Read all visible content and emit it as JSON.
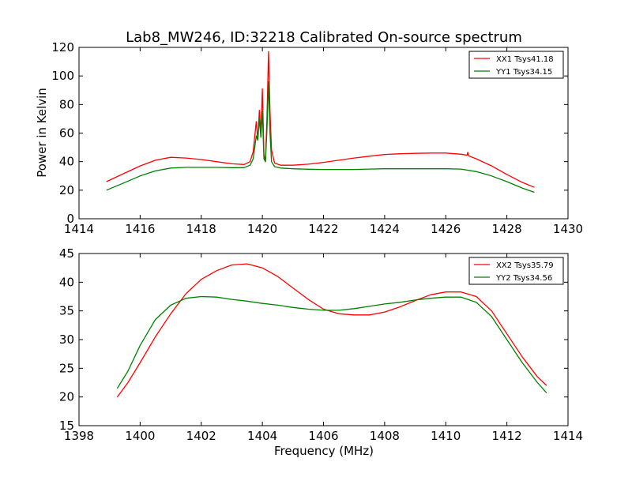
{
  "chart_data": [
    {
      "type": "line",
      "title": "Lab8_MW246, ID:32218 Calibrated On-source spectrum",
      "xlabel": "",
      "ylabel": "Power in Kelvin",
      "xlim": [
        1414,
        1430
      ],
      "ylim": [
        0,
        120
      ],
      "xticks": [
        "1414",
        "1416",
        "1418",
        "1420",
        "1422",
        "1424",
        "1426",
        "1428",
        "1430"
      ],
      "yticks": [
        "0",
        "20",
        "40",
        "60",
        "80",
        "100",
        "120"
      ],
      "grid": false,
      "legend_position": "top-right",
      "series": [
        {
          "name": "XX1 Tsys41.18",
          "color": "#ff0000",
          "x": [
            1414.9,
            1415.4,
            1416.0,
            1416.5,
            1417.0,
            1417.5,
            1418.0,
            1418.5,
            1419.0,
            1419.4,
            1419.6,
            1419.7,
            1419.8,
            1419.85,
            1419.9,
            1419.95,
            1420.0,
            1420.05,
            1420.1,
            1420.15,
            1420.2,
            1420.25,
            1420.3,
            1420.4,
            1420.6,
            1421.0,
            1421.5,
            1422.0,
            1422.5,
            1423.0,
            1423.5,
            1424.0,
            1424.5,
            1425.0,
            1425.5,
            1426.0,
            1426.5,
            1426.7,
            1426.72,
            1426.75,
            1427.0,
            1427.5,
            1428.0,
            1428.5,
            1428.9
          ],
          "y": [
            26,
            31,
            37,
            41,
            43,
            42.5,
            41.5,
            40,
            38.5,
            38,
            40,
            47,
            68,
            55,
            76,
            60,
            91,
            45,
            40,
            70,
            117,
            75,
            48,
            39,
            37.5,
            37.5,
            38.2,
            39.5,
            41,
            42.5,
            43.8,
            45,
            45.5,
            45.8,
            46,
            46,
            45.2,
            44.5,
            46.5,
            44,
            42,
            37,
            31,
            25.5,
            22
          ]
        },
        {
          "name": "YY1 Tsys34.15",
          "color": "#008000",
          "x": [
            1414.9,
            1415.4,
            1416.0,
            1416.5,
            1417.0,
            1417.5,
            1418.0,
            1418.5,
            1419.0,
            1419.4,
            1419.6,
            1419.7,
            1419.8,
            1419.85,
            1419.9,
            1419.95,
            1420.0,
            1420.05,
            1420.1,
            1420.15,
            1420.2,
            1420.25,
            1420.3,
            1420.4,
            1420.6,
            1421.0,
            1421.5,
            1422.0,
            1422.5,
            1423.0,
            1423.5,
            1424.0,
            1424.5,
            1425.0,
            1425.5,
            1426.0,
            1426.5,
            1427.0,
            1427.5,
            1428.0,
            1428.5,
            1428.9
          ],
          "y": [
            20,
            24.5,
            30,
            33.5,
            35.5,
            36,
            36,
            36,
            35.8,
            35.8,
            37.5,
            42,
            58,
            55,
            70,
            57,
            75,
            42,
            40,
            62,
            96,
            60,
            40,
            36.5,
            35.5,
            35,
            34.7,
            34.5,
            34.5,
            34.5,
            34.8,
            35,
            35,
            35,
            35,
            35,
            34.8,
            33,
            30,
            26,
            21.5,
            18.5
          ]
        }
      ]
    },
    {
      "type": "line",
      "title": "",
      "xlabel": "Frequency (MHz)",
      "ylabel": "",
      "xlim": [
        1398,
        1414
      ],
      "ylim": [
        15,
        45
      ],
      "xticks": [
        "1398",
        "1400",
        "1402",
        "1404",
        "1406",
        "1408",
        "1410",
        "1412",
        "1414"
      ],
      "yticks": [
        "15",
        "20",
        "25",
        "30",
        "35",
        "40",
        "45"
      ],
      "grid": false,
      "legend_position": "top-right",
      "series": [
        {
          "name": "XX2 Tsys35.79",
          "color": "#ff0000",
          "x": [
            1399.25,
            1399.6,
            1400.0,
            1400.5,
            1401.0,
            1401.5,
            1402.0,
            1402.5,
            1403.0,
            1403.5,
            1404.0,
            1404.5,
            1405.0,
            1405.5,
            1406.0,
            1406.5,
            1407.0,
            1407.5,
            1408.0,
            1408.5,
            1409.0,
            1409.5,
            1410.0,
            1410.5,
            1411.0,
            1411.5,
            1412.0,
            1412.5,
            1413.0,
            1413.3
          ],
          "y": [
            20,
            22.5,
            26,
            30.5,
            34.5,
            38,
            40.5,
            42,
            43,
            43.2,
            42.5,
            41,
            39,
            37,
            35.3,
            34.5,
            34.3,
            34.3,
            34.8,
            35.7,
            36.8,
            37.8,
            38.3,
            38.3,
            37.5,
            35,
            31,
            27,
            23.5,
            22
          ]
        },
        {
          "name": "YY2 Tsys34.56",
          "color": "#008000",
          "x": [
            1399.25,
            1399.6,
            1400.0,
            1400.5,
            1401.0,
            1401.5,
            1402.0,
            1402.5,
            1403.0,
            1403.5,
            1404.0,
            1404.5,
            1405.0,
            1405.5,
            1406.0,
            1406.5,
            1407.0,
            1407.5,
            1408.0,
            1408.5,
            1409.0,
            1409.5,
            1410.0,
            1410.5,
            1411.0,
            1411.5,
            1412.0,
            1412.5,
            1413.0,
            1413.3
          ],
          "y": [
            21.5,
            24.5,
            29,
            33.5,
            36,
            37.2,
            37.5,
            37.4,
            37,
            36.7,
            36.3,
            36,
            35.6,
            35.3,
            35.1,
            35.1,
            35.4,
            35.8,
            36.2,
            36.5,
            36.9,
            37.2,
            37.4,
            37.4,
            36.5,
            34,
            30,
            26,
            22.5,
            20.7
          ]
        }
      ]
    }
  ]
}
